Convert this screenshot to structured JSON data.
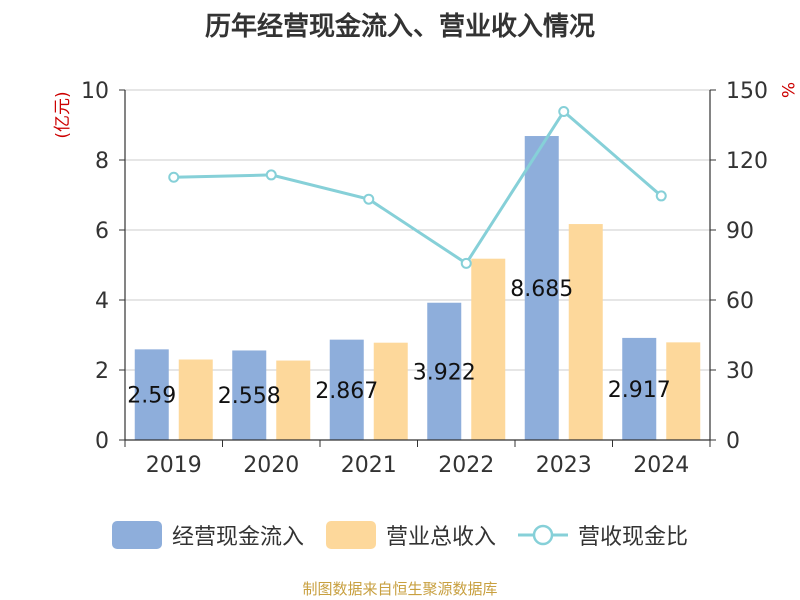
{
  "chart_data": {
    "type": "bar",
    "title": "历年经营现金流入、营业收入情况",
    "categories": [
      "2019",
      "2020",
      "2021",
      "2022",
      "2023",
      "2024"
    ],
    "series": [
      {
        "name": "经营现金流入",
        "type": "bar",
        "axis": "left",
        "color": "#8eaedb",
        "values": [
          2.59,
          2.558,
          2.867,
          3.922,
          8.685,
          2.917
        ],
        "labels": [
          "2.59",
          "2.558",
          "2.867",
          "3.922",
          "8.685",
          "2.917"
        ]
      },
      {
        "name": "营业总收入",
        "type": "bar",
        "axis": "left",
        "color": "#fdd89b",
        "values": [
          2.3,
          2.27,
          2.78,
          5.18,
          6.17,
          2.79
        ]
      },
      {
        "name": "营收现金比",
        "type": "line",
        "axis": "right",
        "color": "#86d0d8",
        "values": [
          112.6,
          113.6,
          103.2,
          75.7,
          140.8,
          104.6
        ]
      }
    ],
    "y_left": {
      "label": "(亿元)",
      "min": 0,
      "max": 10,
      "ticks": [
        "0",
        "2",
        "4",
        "6",
        "8",
        "10"
      ]
    },
    "y_right": {
      "label": "%",
      "min": 0,
      "max": 150,
      "ticks": [
        "0",
        "30",
        "60",
        "90",
        "120",
        "150"
      ]
    },
    "grid": true,
    "legend": "bottom"
  },
  "source_text": "制图数据来自恒生聚源数据库",
  "colors": {
    "title": "#333333",
    "axis_label": "#cc0000",
    "source": "#c8a040",
    "grid": "#cccccc",
    "axis": "#333333"
  }
}
